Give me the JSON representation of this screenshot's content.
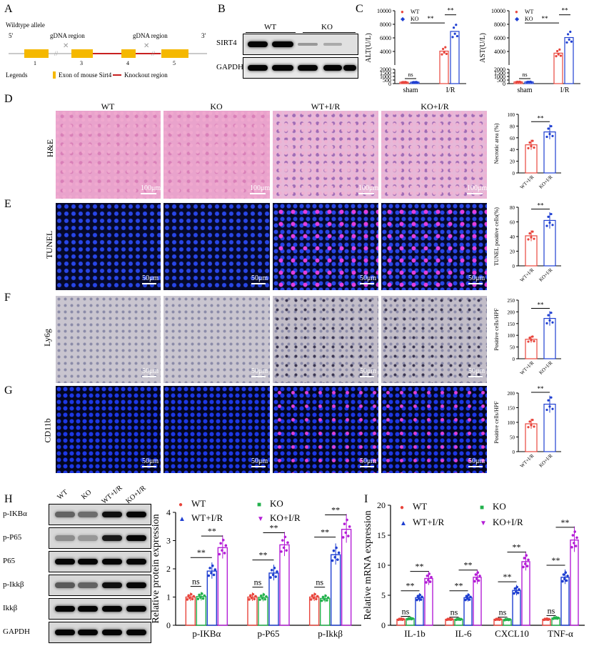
{
  "panels": {
    "A": "A",
    "B": "B",
    "C": "C",
    "D": "D",
    "E": "E",
    "F": "F",
    "G": "G",
    "H": "H",
    "I": "I"
  },
  "panelA": {
    "title": "Wildtype allele",
    "five_prime": "5'",
    "three_prime": "3'",
    "gdna1": "gDNA region",
    "gdna2": "gDNA region",
    "exons": [
      "1",
      "3",
      "4",
      "5"
    ],
    "legends_label": "Legends",
    "legend_exon": "Exon of mouse Sirt4",
    "legend_ko": "Knockout region"
  },
  "panelB": {
    "groups": [
      "WT",
      "KO"
    ],
    "rows": [
      "SIRT4",
      "GAPDH"
    ]
  },
  "panelD": {
    "columns": [
      "WT",
      "KO",
      "WT+I/R",
      "KO+I/R"
    ],
    "row_label": "H&E",
    "scale": "100μm"
  },
  "panelE": {
    "row_label": "TUNEL",
    "scale": "50μm"
  },
  "panelF": {
    "row_label": "Ly6g",
    "scale": "50μm"
  },
  "panelG": {
    "row_label": "CD11b",
    "scale": "50μm"
  },
  "panelH": {
    "lanes": [
      "WT",
      "KO",
      "WT+I/R",
      "KO+I/R"
    ],
    "rows": [
      "p-IKBα",
      "p-P65",
      "P65",
      "p-Ikkβ",
      "Ikkβ",
      "GAPDH"
    ]
  },
  "colors": {
    "WT": "#e8453c",
    "KO": "#22b14c",
    "WTIR": "#1f3fd1",
    "KOIR": "#b41ed6"
  },
  "chart_data": [
    {
      "id": "C-ALT",
      "type": "bar",
      "categories": [
        "sham",
        "I/R"
      ],
      "series": [
        {
          "name": "WT",
          "values": [
            200,
            4050
          ]
        },
        {
          "name": "KO",
          "values": [
            200,
            6950
          ]
        }
      ],
      "ylabel": "ALT(U/L)",
      "yticks": [
        "0",
        "500",
        "1000",
        "1500",
        "2000",
        "4000",
        "6000",
        "8000",
        "10000"
      ],
      "annotations": [
        "ns",
        "**",
        "**"
      ]
    },
    {
      "id": "C-AST",
      "type": "bar",
      "categories": [
        "sham",
        "I/R"
      ],
      "series": [
        {
          "name": "WT",
          "values": [
            230,
            3750
          ]
        },
        {
          "name": "KO",
          "values": [
            230,
            6050
          ]
        }
      ],
      "ylabel": "AST(U/L)",
      "yticks": [
        "0",
        "500",
        "1000",
        "1500",
        "2000",
        "4000",
        "6000",
        "8000",
        "10000"
      ],
      "annotations": [
        "ns",
        "**",
        "**"
      ]
    },
    {
      "id": "D-necrotic",
      "type": "bar",
      "categories": [
        "WT+I/R",
        "KO+I/R"
      ],
      "values": [
        48,
        70
      ],
      "ylabel": "Necrotic area (%)",
      "ylim": [
        0,
        100
      ],
      "yticks": [
        "0",
        "20",
        "40",
        "60",
        "80",
        "100"
      ],
      "annotations": [
        "**"
      ]
    },
    {
      "id": "E-tunel",
      "type": "bar",
      "categories": [
        "WT+I/R",
        "KO+I/R"
      ],
      "values": [
        41,
        62
      ],
      "ylabel": "TUNEL positive cells(%)",
      "ylim": [
        0,
        80
      ],
      "yticks": [
        "0",
        "20",
        "40",
        "60",
        "80"
      ],
      "annotations": [
        "**"
      ]
    },
    {
      "id": "F-ly6g",
      "type": "bar",
      "categories": [
        "WT+I/R",
        "KO+I/R"
      ],
      "values": [
        83,
        172
      ],
      "ylabel": "Positive cells/HPF",
      "ylim": [
        0,
        250
      ],
      "yticks": [
        "0",
        "50",
        "100",
        "150",
        "200",
        "250"
      ],
      "annotations": [
        "**"
      ]
    },
    {
      "id": "G-cd11b",
      "type": "bar",
      "categories": [
        "WT+I/R",
        "KO+I/R"
      ],
      "values": [
        95,
        162
      ],
      "ylabel": "Positive cells/HPF",
      "ylim": [
        0,
        200
      ],
      "yticks": [
        "0",
        "50",
        "100",
        "150",
        "200"
      ],
      "annotations": [
        "**"
      ]
    },
    {
      "id": "H-protein",
      "type": "bar",
      "categories": [
        "p-IKBα",
        "p-P65",
        "p-Ikkβ"
      ],
      "series": [
        {
          "name": "WT",
          "values": [
            1.0,
            1.0,
            1.0
          ]
        },
        {
          "name": "KO",
          "values": [
            1.02,
            0.99,
            0.95
          ]
        },
        {
          "name": "WT+I/R",
          "values": [
            1.92,
            1.85,
            2.5
          ]
        },
        {
          "name": "KO+I/R",
          "values": [
            2.75,
            2.85,
            3.4
          ]
        }
      ],
      "ylabel": "Relative protein expression",
      "ylim": [
        0,
        4
      ],
      "yticks": [
        "0",
        "1",
        "2",
        "3",
        "4"
      ],
      "annotations": [
        "ns",
        "**",
        "**",
        "ns",
        "**",
        "**",
        "ns",
        "**",
        "**"
      ]
    },
    {
      "id": "I-mrna",
      "type": "bar",
      "categories": [
        "IL-1b",
        "IL-6",
        "CXCL10",
        "TNF-α"
      ],
      "series": [
        {
          "name": "WT",
          "values": [
            1.0,
            1.0,
            1.0,
            1.0
          ]
        },
        {
          "name": "KO",
          "values": [
            1.1,
            1.0,
            0.95,
            1.2
          ]
        },
        {
          "name": "WT+I/R",
          "values": [
            4.6,
            4.6,
            5.8,
            8.0
          ]
        },
        {
          "name": "KO+I/R",
          "values": [
            7.8,
            8.0,
            10.6,
            14.2
          ]
        }
      ],
      "ylabel": "Relative mRNA expression",
      "ylim": [
        0,
        20
      ],
      "yticks": [
        "0",
        "5",
        "10",
        "15",
        "20"
      ],
      "annotations": [
        "ns",
        "**",
        "**",
        "ns",
        "**",
        "**",
        "ns",
        "**",
        "**",
        "ns",
        "**",
        "**"
      ]
    }
  ]
}
